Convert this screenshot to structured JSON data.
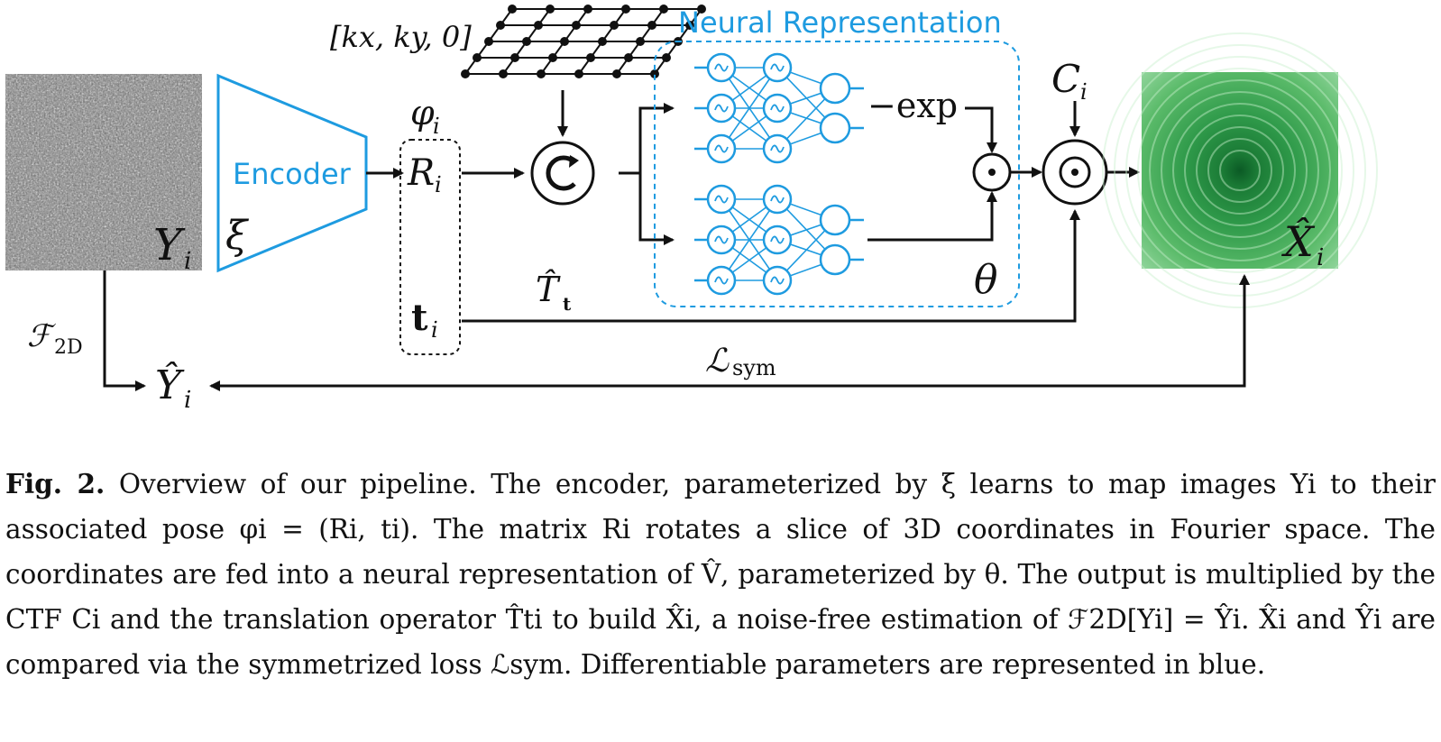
{
  "figure": {
    "grid_label": "[kx, ky, 0]",
    "neural_title": "Neural Representation",
    "encoder_label": "Encoder",
    "xi_label": "ξ",
    "theta_label": "θ",
    "exp_label": "−exp",
    "input_label": "Y",
    "input_sub": "i",
    "output_label": "X̂",
    "output_sub": "i",
    "phi_label": "φ",
    "phi_sub": "i",
    "R_label": "R",
    "R_sub": "i",
    "t_label": "t",
    "t_sub": "i",
    "C_label": "C",
    "C_sub": "i",
    "T_label": "T̂",
    "T_sub": "t",
    "F_label": "ℱ",
    "F_sub": "2D",
    "Yhat_label": "Ŷ",
    "Yhat_sub": "i",
    "L_label": "ℒ",
    "L_sub": "sym",
    "colors": {
      "learned": "#1e9be0",
      "ink": "#111111",
      "output_green": "#1f8a3a"
    }
  },
  "caption": {
    "lead": "Fig. 2.",
    "text": "Overview of our pipeline. The encoder, parameterized by ξ learns to map images Yi to their associated pose φi = (Ri, ti). The matrix Ri rotates a slice of 3D coordinates in Fourier space. The coordinates are fed into a neural representation of V̂, parameterized by θ. The output is multiplied by the CTF Ci and the translation operator T̂ti to build X̂i, a noise-free estimation of ℱ2D[Yi] = Ŷi. X̂i and Ŷi are compared via the symmetrized loss ℒsym. Differentiable parameters are represented in blue."
  }
}
